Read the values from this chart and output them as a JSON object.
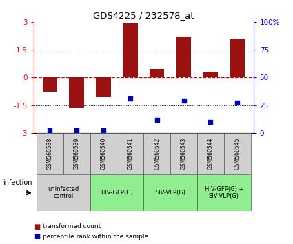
{
  "title": "GDS4225 / 232578_at",
  "samples": [
    "GSM560538",
    "GSM560539",
    "GSM560540",
    "GSM560541",
    "GSM560542",
    "GSM560543",
    "GSM560544",
    "GSM560545"
  ],
  "transformed_count": [
    -0.75,
    -1.62,
    -1.05,
    2.93,
    0.45,
    2.2,
    0.3,
    2.1
  ],
  "percentile_rank": [
    2.5,
    2.5,
    2.5,
    31,
    12,
    29,
    10,
    27
  ],
  "bar_color": "#991111",
  "dot_color": "#0000bb",
  "ylim": [
    -3,
    3
  ],
  "y2lim": [
    0,
    100
  ],
  "yticks": [
    -3,
    -1.5,
    0,
    1.5,
    3
  ],
  "ytick_labels": [
    "-3",
    "-1.5",
    "0",
    "1.5",
    "3"
  ],
  "y2ticks": [
    0,
    25,
    50,
    75,
    100
  ],
  "y2ticklabels": [
    "0",
    "25",
    "50",
    "75",
    "100%"
  ],
  "hline_color": "#cc0000",
  "dotted_color": "black",
  "groups": [
    {
      "label": "uninfected\ncontrol",
      "start": 0,
      "end": 2,
      "color": "#d0d0d0"
    },
    {
      "label": "HIV-GFP(G)",
      "start": 2,
      "end": 4,
      "color": "#90ee90"
    },
    {
      "label": "SIV-VLP(G)",
      "start": 4,
      "end": 6,
      "color": "#90ee90"
    },
    {
      "label": "HIV-GFP(G) +\nSIV-VLP(G)",
      "start": 6,
      "end": 8,
      "color": "#90ee90"
    }
  ],
  "infection_label": "infection",
  "legend_items": [
    {
      "label": "transformed count",
      "color": "#991111"
    },
    {
      "label": "percentile rank within the sample",
      "color": "#0000bb"
    }
  ]
}
